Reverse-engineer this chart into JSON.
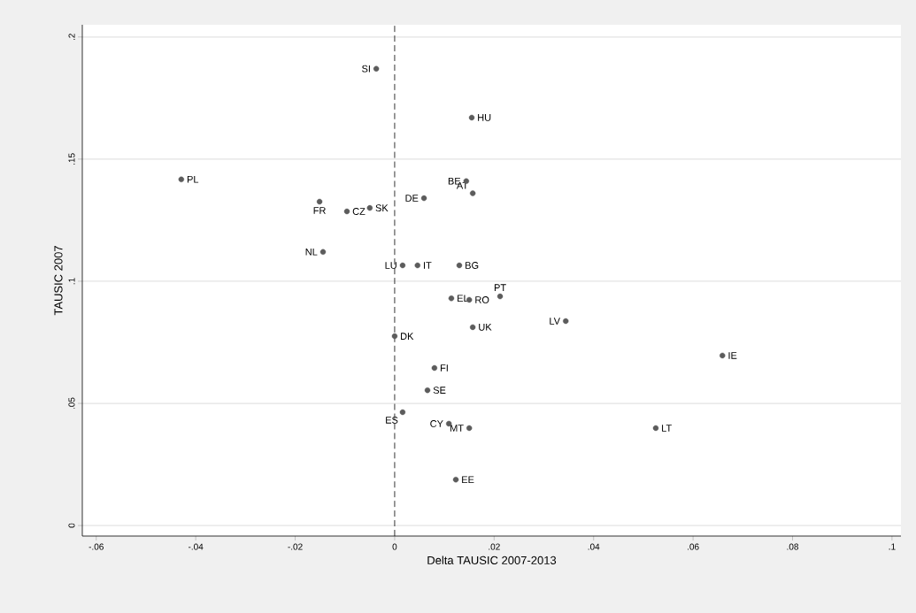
{
  "chart_data": {
    "type": "scatter",
    "xlabel": "Delta TAUSIC 2007-2013",
    "ylabel": "TAUSIC 2007",
    "series": [
      {
        "color": "#5c5c5c",
        "x": [
          -0.0037,
          0.0155,
          -0.0429,
          0.0144,
          0.0157,
          0.0059,
          -0.0151,
          -0.0096,
          -0.005,
          -0.0144,
          0.0016,
          0.0046,
          0.013,
          0.0114,
          0.015,
          0.0212,
          0.0157,
          0.0344,
          0.0,
          0.0659,
          0.008,
          0.0066,
          0.0016,
          0.0109,
          0.015,
          0.0525,
          0.0123
        ],
        "values": [
          0.187,
          0.167,
          0.1417,
          0.141,
          0.136,
          0.134,
          0.1326,
          0.1286,
          0.13,
          0.112,
          0.1065,
          0.1065,
          0.1065,
          0.093,
          0.0924,
          0.0938,
          0.0812,
          0.0837,
          0.0775,
          0.0696,
          0.0645,
          0.0554,
          0.0464,
          0.0417,
          0.0399,
          0.0399,
          0.0188
        ]
      }
    ],
    "annotations": [
      {
        "text": "SI",
        "x": -0.0037,
        "y": 0.187
      },
      {
        "text": "HU",
        "x": 0.0155,
        "y": 0.167
      },
      {
        "text": "PL",
        "x": -0.0429,
        "y": 0.1417
      },
      {
        "text": "BE",
        "x": 0.0144,
        "y": 0.141
      },
      {
        "text": "AT",
        "x": 0.0157,
        "y": 0.136
      },
      {
        "text": "DE",
        "x": 0.0059,
        "y": 0.134
      },
      {
        "text": "FR",
        "x": -0.0151,
        "y": 0.1326
      },
      {
        "text": "CZ",
        "x": -0.0096,
        "y": 0.1286
      },
      {
        "text": "SK",
        "x": -0.005,
        "y": 0.13
      },
      {
        "text": "NL",
        "x": -0.0144,
        "y": 0.112
      },
      {
        "text": "LU",
        "x": 0.0016,
        "y": 0.1065
      },
      {
        "text": "IT",
        "x": 0.0046,
        "y": 0.1065
      },
      {
        "text": "BG",
        "x": 0.013,
        "y": 0.1065
      },
      {
        "text": "EL",
        "x": 0.0114,
        "y": 0.093
      },
      {
        "text": "RO",
        "x": 0.015,
        "y": 0.0924
      },
      {
        "text": "PT",
        "x": 0.0212,
        "y": 0.0938
      },
      {
        "text": "UK",
        "x": 0.0157,
        "y": 0.0812
      },
      {
        "text": "LV",
        "x": 0.0344,
        "y": 0.0837
      },
      {
        "text": "DK",
        "x": 0.0,
        "y": 0.0775
      },
      {
        "text": "IE",
        "x": 0.0659,
        "y": 0.0696
      },
      {
        "text": "FI",
        "x": 0.008,
        "y": 0.0645
      },
      {
        "text": "SE",
        "x": 0.0066,
        "y": 0.0554
      },
      {
        "text": "ES",
        "x": 0.0016,
        "y": 0.0464
      },
      {
        "text": "CY",
        "x": 0.0109,
        "y": 0.0417
      },
      {
        "text": "MT",
        "x": 0.015,
        "y": 0.0399
      },
      {
        "text": "LT",
        "x": 0.0525,
        "y": 0.0399
      },
      {
        "text": "EE",
        "x": 0.0123,
        "y": 0.0188
      }
    ],
    "xlim": [
      -0.0628,
      0.1018
    ],
    "ylim": [
      -0.0043,
      0.205
    ],
    "xticks": [
      {
        "value": -0.06,
        "label": "-.06"
      },
      {
        "value": -0.04,
        "label": "-.04"
      },
      {
        "value": -0.02,
        "label": "-.02"
      },
      0,
      {
        "value": 0.02,
        "label": ".02"
      },
      {
        "value": 0.04,
        "label": ".04"
      },
      {
        "value": 0.06,
        "label": ".06"
      },
      {
        "value": 0.08,
        "label": ".08"
      },
      {
        "value": 0.1,
        "label": ".1"
      }
    ],
    "yticks": [
      0,
      {
        "value": 0.05,
        "label": ".05"
      },
      {
        "value": 0.1,
        "label": ".1"
      },
      {
        "value": 0.15,
        "label": ".15"
      },
      {
        "value": 0.2,
        "label": ".2"
      }
    ],
    "ref_lines": [
      {
        "axis": "x",
        "value": 0,
        "color": "#000000",
        "line_style": "dashed"
      }
    ],
    "grid": "y",
    "marker": "circle"
  }
}
